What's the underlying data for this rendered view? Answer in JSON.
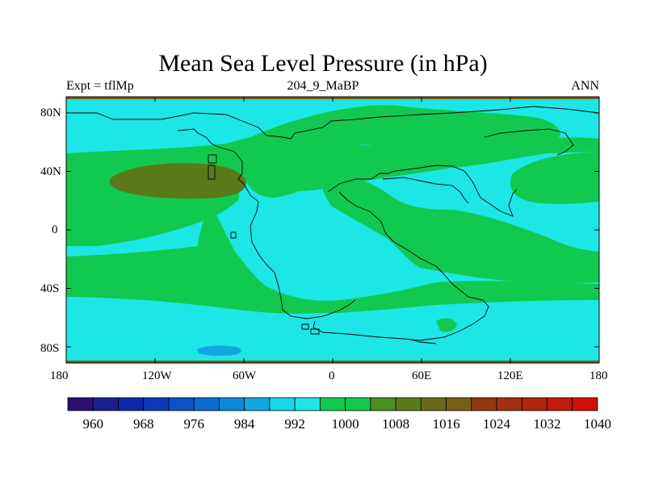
{
  "title": "Mean Sea Level Pressure (in hPa)",
  "subtitle_left": "Expt = tflMp",
  "subtitle_center": "204_9_MaBP",
  "subtitle_right": "ANN",
  "x_ticks": [
    "180",
    "120W",
    "60W",
    "0",
    "60E",
    "120E",
    "180"
  ],
  "y_ticks": [
    "80N",
    "40N",
    "0",
    "40S",
    "80S"
  ],
  "colorbar": {
    "labels": [
      "960",
      "968",
      "976",
      "984",
      "992",
      "1000",
      "1008",
      "1016",
      "1024",
      "1032",
      "1040"
    ],
    "colors": [
      "#2c0f6e",
      "#1a1e8e",
      "#0c2aa8",
      "#0b3bbb",
      "#0b52c8",
      "#0a6cd2",
      "#0b89d8",
      "#11a6e2",
      "#18d7e8",
      "#1de6e6",
      "#12c950",
      "#14c94f",
      "#4a8f22",
      "#5a7a1a",
      "#6a6b18",
      "#7b5e16",
      "#913a12",
      "#a3300f",
      "#b0250d",
      "#c01b0b",
      "#d01008"
    ]
  },
  "colors": {
    "ocean_low": "#1de6e6",
    "mid": "#12c950",
    "high": "#5a7a1a",
    "deep_low": "#11a6e2",
    "border_band": "#7b5e16"
  }
}
